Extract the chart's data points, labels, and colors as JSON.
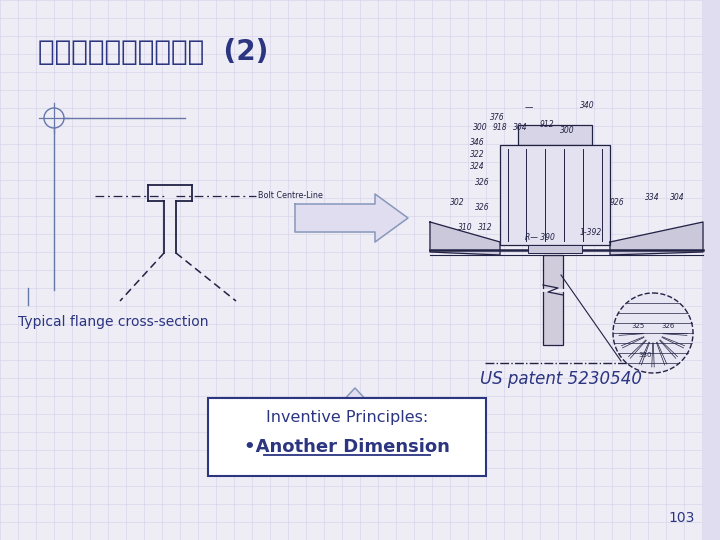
{
  "title": "範例：渦輪機凸緣接合  (2)",
  "title_color": "#2b3580",
  "title_fontsize": 20,
  "bg_color": "#eeecf5",
  "grid_color": "#d4d0e8",
  "label_typical": "Typical flange cross-section",
  "label_patent": "US patent 5230540",
  "label_inv1": "Inventive Principles:",
  "label_inv2": "•Another Dimension",
  "label_bolt": "Bolt Centre-Line",
  "text_color": "#2b3580",
  "line_color": "#222244",
  "page_num": "103",
  "box_color": "#2b3580",
  "symbol_color": "#6677aa",
  "bg_right_color": "#e0ddf0"
}
